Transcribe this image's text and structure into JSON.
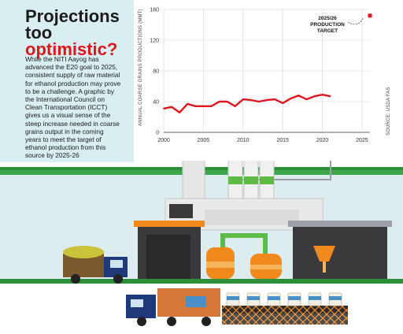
{
  "panel": {
    "headline_top": "Projections too",
    "headline_highlight": "optimistic?",
    "body": "While the NITI Aayog has advanced the E20 goal to 2025, consistent supply of raw material for ethanol production may prove to be a challenge. A graphic by the International Council on Clean Transportation (ICCT) gives us a visual sense of the steep increase needed in coarse grains output in the coming years to meet the target of ethanol production from this source by 2025-26",
    "bg_color": "#d8eef1"
  },
  "chart_data": {
    "type": "line",
    "ylabel": "ANNUAL COARSE GRAINS PRODUCTIONS (MMT)",
    "source": "SOURCE: USDA FAS",
    "ylim": [
      0,
      160
    ],
    "yticks": [
      0,
      40,
      80,
      120,
      160
    ],
    "xlim": [
      2000,
      2026
    ],
    "xticks": [
      2000,
      2005,
      2010,
      2015,
      2020,
      2025
    ],
    "grid": true,
    "series": [
      {
        "color": "#e0161e",
        "x": [
          2000,
          2001,
          2002,
          2003,
          2004,
          2005,
          2006,
          2007,
          2008,
          2009,
          2010,
          2011,
          2012,
          2013,
          2014,
          2015,
          2016,
          2017,
          2018,
          2019,
          2020,
          2021
        ],
        "values": [
          31,
          33,
          26,
          37,
          34,
          34,
          34,
          40,
          40,
          34,
          43,
          42,
          40,
          42,
          43,
          38,
          44,
          48,
          43,
          47,
          49,
          47
        ]
      }
    ],
    "target": {
      "label_line1": "2025/26",
      "label_line2": "PRODUCTION",
      "label_line3": "TARGET",
      "x": 2026,
      "y": 152,
      "color": "#e0161e"
    }
  },
  "colors": {
    "accent_red": "#e0161e",
    "ground_green": "#2c8f3a",
    "factory_gray": "#3a3a3c",
    "orange": "#f08a1e"
  }
}
